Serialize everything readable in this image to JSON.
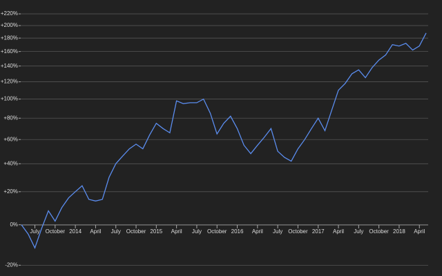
{
  "chart_data": {
    "type": "line",
    "log_scale": true,
    "grid": true,
    "x": [
      "2013-05",
      "2013-06",
      "2013-07",
      "2013-08",
      "2013-09",
      "2013-10",
      "2013-11",
      "2013-12",
      "2014-01",
      "2014-02",
      "2014-03",
      "2014-04",
      "2014-05",
      "2014-06",
      "2014-07",
      "2014-08",
      "2014-09",
      "2014-10",
      "2014-11",
      "2014-12",
      "2015-01",
      "2015-02",
      "2015-03",
      "2015-04",
      "2015-05",
      "2015-06",
      "2015-07",
      "2015-08",
      "2015-09",
      "2015-10",
      "2015-11",
      "2015-12",
      "2016-01",
      "2016-02",
      "2016-03",
      "2016-04",
      "2016-05",
      "2016-06",
      "2016-07",
      "2016-08",
      "2016-09",
      "2016-10",
      "2016-11",
      "2016-12",
      "2017-01",
      "2017-02",
      "2017-03",
      "2017-04",
      "2017-05",
      "2017-06",
      "2017-07",
      "2017-08",
      "2017-09",
      "2017-10",
      "2017-11",
      "2017-12",
      "2018-01",
      "2018-02",
      "2018-03",
      "2018-04",
      "2018-05"
    ],
    "series": [
      {
        "color": "#5b8def",
        "values": [
          0,
          -5,
          -12,
          -2,
          8,
          2,
          10,
          16,
          20,
          24,
          15,
          14,
          15,
          30,
          40,
          46,
          52,
          56,
          52,
          64,
          75,
          70,
          66,
          98,
          95,
          96,
          96,
          100,
          85,
          65,
          75,
          82,
          70,
          55,
          48,
          55,
          62,
          70,
          50,
          45,
          42,
          52,
          60,
          70,
          80,
          68,
          88,
          110,
          118,
          130,
          135,
          125,
          138,
          148,
          155,
          170,
          168,
          172,
          162,
          168,
          188
        ]
      }
    ],
    "xlim": [
      "2013-05",
      "2018-05"
    ],
    "xticks": [
      {
        "value": "2013-07",
        "label": "July"
      },
      {
        "value": "2013-10",
        "label": "October"
      },
      {
        "value": "2014-01",
        "label": "2014"
      },
      {
        "value": "2014-04",
        "label": "April"
      },
      {
        "value": "2014-07",
        "label": "July"
      },
      {
        "value": "2014-10",
        "label": "October"
      },
      {
        "value": "2015-01",
        "label": "2015"
      },
      {
        "value": "2015-04",
        "label": "April"
      },
      {
        "value": "2015-07",
        "label": "July"
      },
      {
        "value": "2015-10",
        "label": "October"
      },
      {
        "value": "2016-01",
        "label": "2016"
      },
      {
        "value": "2016-04",
        "label": "April"
      },
      {
        "value": "2016-07",
        "label": "July"
      },
      {
        "value": "2016-10",
        "label": "October"
      },
      {
        "value": "2017-01",
        "label": "2017"
      },
      {
        "value": "2017-04",
        "label": "April"
      },
      {
        "value": "2017-07",
        "label": "July"
      },
      {
        "value": "2017-10",
        "label": "October"
      },
      {
        "value": "2018-01",
        "label": "2018"
      },
      {
        "value": "2018-04",
        "label": "April"
      }
    ],
    "ylim": [
      -22,
      230
    ],
    "yticks": [
      {
        "value": -20,
        "label": "-20%"
      },
      {
        "value": 0,
        "label": "0%"
      },
      {
        "value": 20,
        "label": "+20%"
      },
      {
        "value": 40,
        "label": "+40%"
      },
      {
        "value": 60,
        "label": "+60%"
      },
      {
        "value": 80,
        "label": "+80%"
      },
      {
        "value": 100,
        "label": "+100%"
      },
      {
        "value": 120,
        "label": "+120%"
      },
      {
        "value": 140,
        "label": "+140%"
      },
      {
        "value": 160,
        "label": "+160%"
      },
      {
        "value": 180,
        "label": "+180%"
      },
      {
        "value": 200,
        "label": "+200%"
      },
      {
        "value": 220,
        "label": "+220%"
      }
    ]
  }
}
